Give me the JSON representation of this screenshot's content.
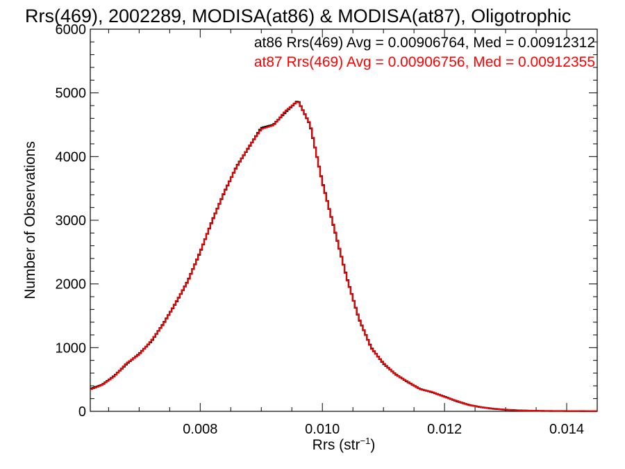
{
  "chart_data": {
    "type": "line",
    "title": "Rrs(469), 2002289, MODISA(at86) & MODISA(at87), Oligotrophic",
    "xlabel": "Rrs (str",
    "xlabel_sup": "−1",
    "xlabel_close": ")",
    "ylabel": "Number of Observations",
    "xlim": [
      0.0062,
      0.0145
    ],
    "ylim": [
      0,
      6000
    ],
    "x_ticks": [
      0.008,
      0.01,
      0.012,
      0.014
    ],
    "x_tick_labels": [
      "0.008",
      "0.010",
      "0.012",
      "0.014"
    ],
    "y_ticks": [
      0,
      1000,
      2000,
      3000,
      4000,
      5000,
      6000
    ],
    "y_tick_labels": [
      "0",
      "1000",
      "2000",
      "3000",
      "4000",
      "5000",
      "6000"
    ],
    "grid": false,
    "legend_position": "top-right",
    "legend": [
      "at86 Rrs(469) Avg = 0.00906764, Med = 0.00912312",
      "at87 Rrs(469) Avg = 0.00906756, Med = 0.00912355"
    ],
    "colors": {
      "at86": "#000000",
      "at87": "#ff0000"
    },
    "x": [
      0.0062,
      0.0064,
      0.0066,
      0.0068,
      0.007,
      0.0072,
      0.0074,
      0.0076,
      0.0078,
      0.008,
      0.0082,
      0.0084,
      0.0086,
      0.0088,
      0.009,
      0.0092,
      0.0094,
      0.0096,
      0.0098,
      0.01,
      0.0102,
      0.0104,
      0.0106,
      0.0108,
      0.011,
      0.0112,
      0.0114,
      0.0116,
      0.0118,
      0.012,
      0.0122,
      0.0124,
      0.0126,
      0.0128,
      0.013,
      0.0132,
      0.0134,
      0.0136,
      0.0138,
      0.014,
      0.0142,
      0.0144,
      0.0145
    ],
    "series": [
      {
        "name": "at86",
        "color": "#000000",
        "values": [
          350,
          420,
          560,
          750,
          900,
          1100,
          1380,
          1700,
          2050,
          2500,
          3000,
          3450,
          3850,
          4150,
          4450,
          4500,
          4700,
          4880,
          4500,
          3600,
          2850,
          2100,
          1450,
          1000,
          750,
          580,
          460,
          350,
          300,
          230,
          160,
          100,
          65,
          40,
          25,
          15,
          10,
          7,
          5,
          4,
          3,
          2,
          2
        ]
      },
      {
        "name": "at87",
        "color": "#ff0000",
        "values": [
          340,
          415,
          555,
          760,
          890,
          1110,
          1370,
          1710,
          2040,
          2510,
          2990,
          3460,
          3840,
          4160,
          4430,
          4490,
          4720,
          4870,
          4510,
          3590,
          2860,
          2090,
          1460,
          990,
          760,
          575,
          465,
          345,
          305,
          225,
          165,
          98,
          66,
          39,
          26,
          14,
          10,
          7,
          5,
          4,
          3,
          2,
          2
        ]
      }
    ]
  }
}
